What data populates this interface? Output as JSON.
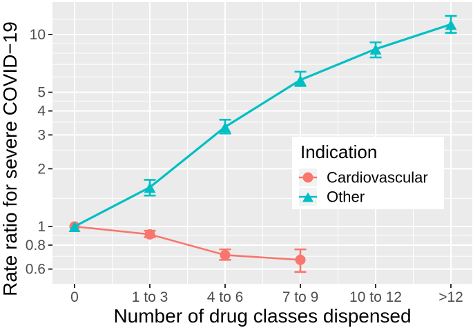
{
  "chart_data": {
    "type": "line",
    "title": "",
    "xlabel": "Number of drug classes dispensed",
    "ylabel": "Rate ratio for severe COVID−19",
    "x_categories": [
      "0",
      "1 to 3",
      "4 to 6",
      "7 to 9",
      "10 to 12",
      ">12"
    ],
    "y_scale": "log10",
    "ylim": [
      0.5,
      14.7
    ],
    "y_ticks": [
      10,
      5,
      4,
      3,
      2,
      1,
      0.8,
      0.6
    ],
    "y_tick_labels": [
      "10",
      "5",
      "4",
      "3",
      "2",
      "1",
      "0.8",
      "0.6"
    ],
    "y_minor_gridlines": [
      12,
      9,
      8,
      7,
      6,
      4.5,
      3.5,
      2.5,
      1.4,
      0.9,
      0.7
    ],
    "grid": true,
    "error_bars": true,
    "legend": {
      "title": "Indication",
      "position": "inside-right",
      "entries": [
        {
          "label": "Cardiovascular",
          "marker": "circle",
          "color": "#F8766D"
        },
        {
          "label": "Other",
          "marker": "triangle",
          "color": "#00BFC4"
        }
      ]
    },
    "series": [
      {
        "name": "Cardiovascular",
        "color": "#F8766D",
        "marker": "circle",
        "points": [
          {
            "x": "0",
            "y": 1.0,
            "lo": 1.0,
            "hi": 1.0
          },
          {
            "x": "1 to 3",
            "y": 0.91,
            "lo": 0.88,
            "hi": 0.95
          },
          {
            "x": "4 to 6",
            "y": 0.71,
            "lo": 0.67,
            "hi": 0.76
          },
          {
            "x": "7 to 9",
            "y": 0.67,
            "lo": 0.58,
            "hi": 0.76
          }
        ]
      },
      {
        "name": "Other",
        "color": "#00BFC4",
        "marker": "triangle",
        "points": [
          {
            "x": "0",
            "y": 1.0,
            "lo": 1.0,
            "hi": 1.0
          },
          {
            "x": "1 to 3",
            "y": 1.6,
            "lo": 1.45,
            "hi": 1.75
          },
          {
            "x": "4 to 6",
            "y": 3.3,
            "lo": 3.05,
            "hi": 3.6
          },
          {
            "x": "7 to 9",
            "y": 5.8,
            "lo": 5.4,
            "hi": 6.4
          },
          {
            "x": "10 to 12",
            "y": 8.4,
            "lo": 7.6,
            "hi": 9.1
          },
          {
            "x": ">12",
            "y": 11.3,
            "lo": 10.2,
            "hi": 12.5
          }
        ]
      }
    ],
    "colors": {
      "panel_background": "#EBEBEB",
      "gridline": "#FFFFFF",
      "tick_mark": "#333333",
      "tick_label": "#4D4D4D",
      "axis_title": "#000000",
      "legend_background": "#FFFFFF",
      "legend_key_background": "#F2F2F2"
    }
  }
}
